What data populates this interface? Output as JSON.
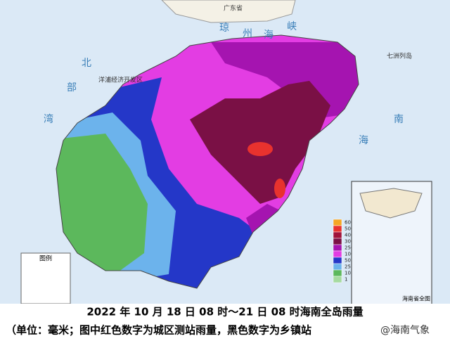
{
  "map": {
    "title": "2022 年 10 月 18 日 08 时～21 日 08 时海南全岛雨量",
    "subtitle": "（单位：毫米；图中红色数字为城区测站雨量，黑色数字为乡镇站",
    "watermark": "@海南气象",
    "sea_labels": [
      "北",
      "部",
      "湾",
      "琼",
      "州",
      "海",
      "峡",
      "南",
      "海"
    ],
    "places": [
      "广东省",
      "七洲列岛",
      "洋浦经济开发区"
    ],
    "legend_title": "图例",
    "scale": [
      600,
      500,
      400,
      300,
      250,
      100,
      50,
      25,
      10,
      1
    ],
    "inset_title": "海南省全图"
  }
}
